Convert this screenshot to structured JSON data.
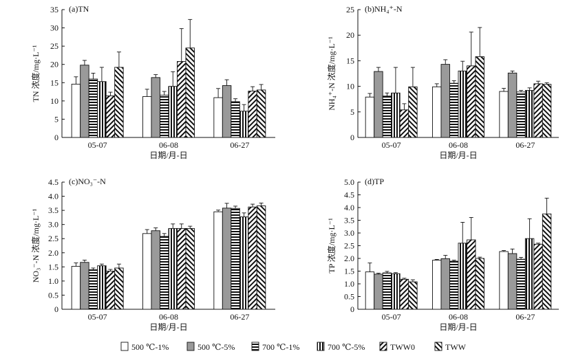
{
  "figure": {
    "legend": [
      {
        "label": "500 ℃-1%",
        "pattern": "open"
      },
      {
        "label": "500 ℃-5%",
        "pattern": "gray"
      },
      {
        "label": "700 ℃-1%",
        "pattern": "hlines"
      },
      {
        "label": "700 ℃-5%",
        "pattern": "vlines"
      },
      {
        "label": "TWW0",
        "pattern": "diag"
      },
      {
        "label": "TWW",
        "pattern": "antidiag"
      }
    ]
  },
  "chart_data": [
    {
      "type": "bar",
      "panel_label": "(a)TN",
      "ylabel": "TN 浓度/mg·L⁻¹",
      "xlabel": "日期/月-日",
      "categories": [
        "05-07",
        "06-08",
        "06-27"
      ],
      "ylim": [
        0,
        35
      ],
      "yticks": [
        "0",
        "5",
        "10",
        "15",
        "20",
        "25",
        "30",
        "35"
      ],
      "series": [
        {
          "name": "500 ℃-1%",
          "values": [
            14.6,
            11.2,
            10.9
          ],
          "errors": [
            2.0,
            2.0,
            2.5
          ]
        },
        {
          "name": "500 ℃-5%",
          "values": [
            19.8,
            16.4,
            14.2
          ],
          "errors": [
            1.3,
            0.8,
            1.6
          ]
        },
        {
          "name": "700 ℃-1%",
          "values": [
            16.0,
            11.6,
            9.8
          ],
          "errors": [
            1.6,
            1.0,
            0.8
          ]
        },
        {
          "name": "700 ℃-5%",
          "values": [
            15.3,
            14.0,
            7.2
          ],
          "errors": [
            3.9,
            4.0,
            1.8
          ]
        },
        {
          "name": "TWW0",
          "values": [
            11.4,
            20.8,
            12.7
          ],
          "errors": [
            1.0,
            9.0,
            1.2
          ]
        },
        {
          "name": "TWW",
          "values": [
            19.2,
            24.5,
            13.0
          ],
          "errors": [
            4.2,
            7.8,
            1.5
          ]
        }
      ]
    },
    {
      "type": "bar",
      "panel_label": "(b)NH₄⁺-N",
      "ylabel": "NH₄⁺-N 浓度/mg·L⁻¹",
      "xlabel": "日期/月-日",
      "categories": [
        "05-07",
        "06-08",
        "06-27"
      ],
      "ylim": [
        0,
        25
      ],
      "yticks": [
        "0",
        "5",
        "10",
        "15",
        "20",
        "25"
      ],
      "series": [
        {
          "name": "500 ℃-1%",
          "values": [
            7.9,
            9.9,
            9.0
          ],
          "errors": [
            0.7,
            0.6,
            0.6
          ]
        },
        {
          "name": "500 ℃-5%",
          "values": [
            12.9,
            14.3,
            12.6
          ],
          "errors": [
            0.8,
            0.9,
            0.4
          ]
        },
        {
          "name": "700 ℃-1%",
          "values": [
            8.1,
            10.6,
            8.9
          ],
          "errors": [
            0.6,
            0.5,
            0.3
          ]
        },
        {
          "name": "700 ℃-5%",
          "values": [
            8.7,
            13.0,
            9.2
          ],
          "errors": [
            5.0,
            1.9,
            0.5
          ]
        },
        {
          "name": "TWW0",
          "values": [
            5.4,
            14.0,
            10.5
          ],
          "errors": [
            1.2,
            6.6,
            0.5
          ]
        },
        {
          "name": "TWW",
          "values": [
            9.9,
            15.8,
            10.4
          ],
          "errors": [
            3.8,
            5.7,
            0.3
          ]
        }
      ]
    },
    {
      "type": "bar",
      "panel_label": "(c)NO₃⁻-N",
      "ylabel": "NO₃⁻-N 浓度/mg·L⁻¹",
      "xlabel": "日期/月-日",
      "categories": [
        "05-07",
        "06-08",
        "06-27"
      ],
      "ylim": [
        0,
        4.5
      ],
      "yticks": [
        "0",
        "0.5",
        "1.0",
        "1.5",
        "2.0",
        "2.5",
        "3.0",
        "3.5",
        "4.0",
        "4.5"
      ],
      "series": [
        {
          "name": "500 ℃-1%",
          "values": [
            1.52,
            2.68,
            3.45
          ],
          "errors": [
            0.12,
            0.14,
            0.06
          ]
        },
        {
          "name": "500 ℃-5%",
          "values": [
            1.66,
            2.78,
            3.58
          ],
          "errors": [
            0.08,
            0.1,
            0.17
          ]
        },
        {
          "name": "700 ℃-1%",
          "values": [
            1.4,
            2.58,
            3.57
          ],
          "errors": [
            0.06,
            0.1,
            0.08
          ]
        },
        {
          "name": "700 ℃-5%",
          "values": [
            1.54,
            2.86,
            3.27
          ],
          "errors": [
            0.06,
            0.16,
            0.14
          ]
        },
        {
          "name": "TWW0",
          "values": [
            1.35,
            2.86,
            3.62
          ],
          "errors": [
            0.06,
            0.16,
            0.1
          ]
        },
        {
          "name": "TWW",
          "values": [
            1.46,
            2.86,
            3.66
          ],
          "errors": [
            0.14,
            0.08,
            0.1
          ]
        }
      ]
    },
    {
      "type": "bar",
      "panel_label": "(d)TP",
      "ylabel": "TP 浓度/mg·L⁻¹",
      "xlabel": "日期/月-日",
      "categories": [
        "05-07",
        "06-08",
        "06-27"
      ],
      "ylim": [
        0,
        5.0
      ],
      "yticks": [
        "0",
        "0.5",
        "1.0",
        "1.5",
        "2.0",
        "2.5",
        "3.0",
        "3.5",
        "4.0",
        "4.5",
        "5.0"
      ],
      "series": [
        {
          "name": "500 ℃-1%",
          "values": [
            1.47,
            1.93,
            2.27
          ],
          "errors": [
            0.35,
            0.03,
            0.04
          ]
        },
        {
          "name": "500 ℃-5%",
          "values": [
            1.38,
            1.99,
            2.19
          ],
          "errors": [
            0.04,
            0.13,
            0.18
          ]
        },
        {
          "name": "700 ℃-1%",
          "values": [
            1.43,
            1.89,
            1.97
          ],
          "errors": [
            0.06,
            0.04,
            0.07
          ]
        },
        {
          "name": "700 ℃-5%",
          "values": [
            1.4,
            2.6,
            2.78
          ],
          "errors": [
            0.04,
            0.82,
            0.78
          ]
        },
        {
          "name": "TWW0",
          "values": [
            1.18,
            2.73,
            2.56
          ],
          "errors": [
            0.04,
            0.88,
            0.04
          ]
        },
        {
          "name": "TWW",
          "values": [
            1.08,
            2.0,
            3.75
          ],
          "errors": [
            0.08,
            0.05,
            0.62
          ]
        }
      ]
    }
  ]
}
